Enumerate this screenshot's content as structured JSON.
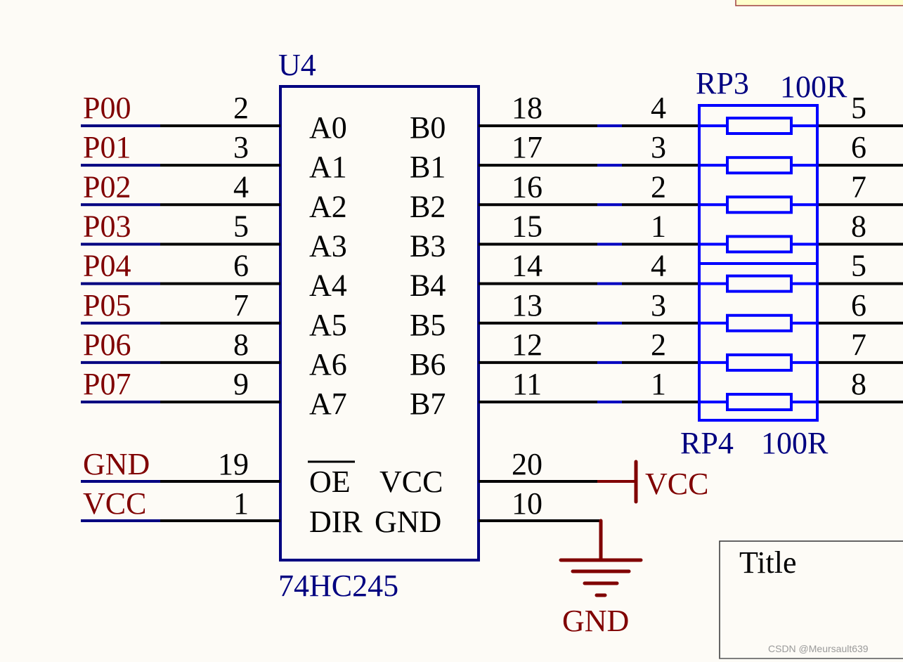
{
  "colors": {
    "background": "#fdfbf6",
    "wire": "#000000",
    "net_label": "#800000",
    "designator": "#000080",
    "resistor": "#0000ff"
  },
  "chip": {
    "designator": "U4",
    "part": "74HC245",
    "a_pins": [
      {
        "net": "P00",
        "num": "2",
        "name": "A0"
      },
      {
        "net": "P01",
        "num": "3",
        "name": "A1"
      },
      {
        "net": "P02",
        "num": "4",
        "name": "A2"
      },
      {
        "net": "P03",
        "num": "5",
        "name": "A3"
      },
      {
        "net": "P04",
        "num": "6",
        "name": "A4"
      },
      {
        "net": "P05",
        "num": "7",
        "name": "A5"
      },
      {
        "net": "P06",
        "num": "8",
        "name": "A6"
      },
      {
        "net": "P07",
        "num": "9",
        "name": "A7"
      }
    ],
    "b_pins": [
      {
        "num": "18",
        "name": "B0",
        "rp_in": "4",
        "rp_out": "5"
      },
      {
        "num": "17",
        "name": "B1",
        "rp_in": "3",
        "rp_out": "6"
      },
      {
        "num": "16",
        "name": "B2",
        "rp_in": "2",
        "rp_out": "7"
      },
      {
        "num": "15",
        "name": "B3",
        "rp_in": "1",
        "rp_out": "8"
      },
      {
        "num": "14",
        "name": "B4",
        "rp_in": "4",
        "rp_out": "5"
      },
      {
        "num": "13",
        "name": "B5",
        "rp_in": "3",
        "rp_out": "6"
      },
      {
        "num": "12",
        "name": "B6",
        "rp_in": "2",
        "rp_out": "7"
      },
      {
        "num": "11",
        "name": "B7",
        "rp_in": "1",
        "rp_out": "8"
      }
    ],
    "oe": {
      "net": "GND",
      "num": "19",
      "name": "OE"
    },
    "dir": {
      "net": "VCC",
      "num": "1",
      "name": "DIR"
    },
    "vcc": {
      "num": "20",
      "name": "VCC"
    },
    "gnd": {
      "num": "10",
      "name": "GND"
    }
  },
  "rp3": {
    "designator": "RP3",
    "value": "100R"
  },
  "rp4": {
    "designator": "RP4",
    "value": "100R"
  },
  "power": {
    "vcc_label": "VCC",
    "gnd_label": "GND"
  },
  "title_block": {
    "title_label": "Title"
  },
  "watermark": "CSDN @Meursault639"
}
